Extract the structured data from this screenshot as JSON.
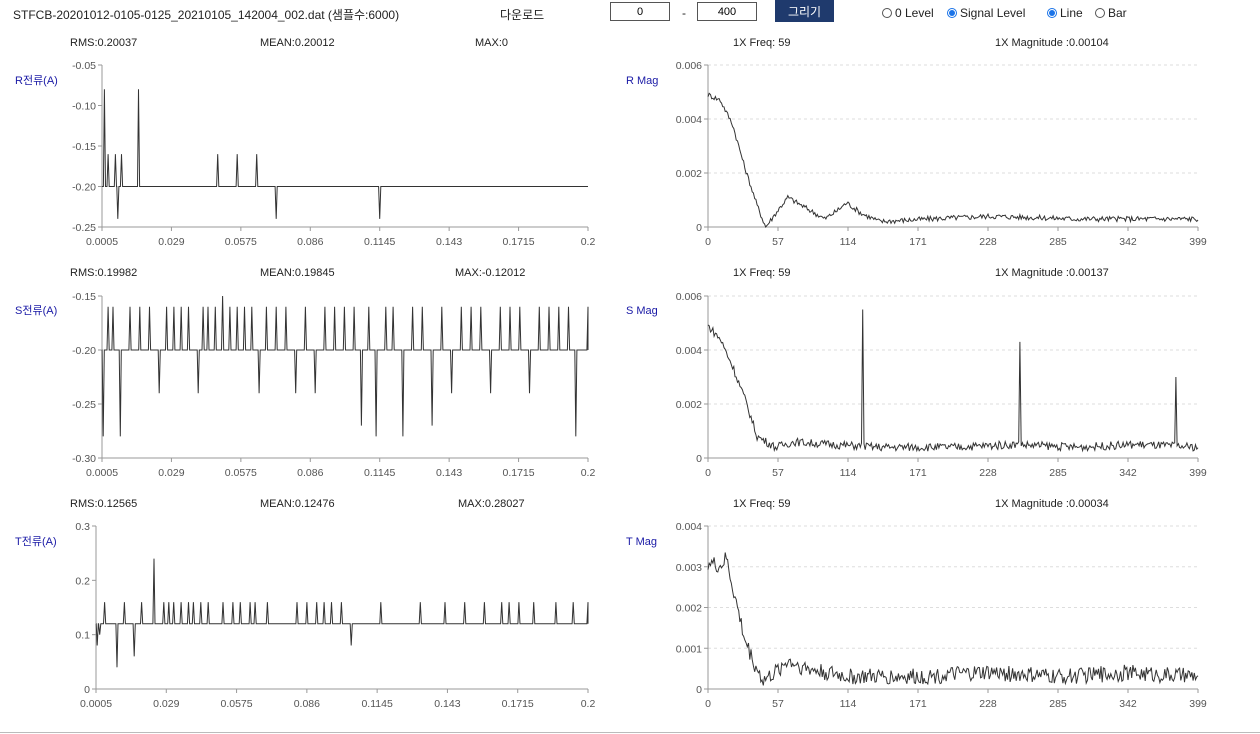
{
  "toolbar": {
    "filename": "STFCB-20201012-0105-0125_20210105_142004_002.dat (샘플수:6000)",
    "download_label": "다운로드",
    "range_start": "0",
    "range_dash": "-",
    "range_end": "400",
    "draw_label": "그리기",
    "level_options": [
      {
        "label": "0 Level",
        "selected": false
      },
      {
        "label": "Signal Level",
        "selected": true
      }
    ],
    "chart_options": [
      {
        "label": "Line",
        "selected": true
      },
      {
        "label": "Bar",
        "selected": false
      }
    ]
  },
  "colors": {
    "line": "#333333",
    "axis_label": "#1a1aa6",
    "button": "#1f3a6d",
    "radio_active": "#1a73e8"
  },
  "panels": [
    {
      "signal": {
        "label": "R전류(A)",
        "stats": [
          "RMS:0.20037",
          "MEAN:0.20012",
          "MAX:0"
        ]
      },
      "spectrum": {
        "label": "R Mag",
        "stats": [
          "1X Freq: 59",
          "1X Magnitude :0.00104"
        ]
      }
    },
    {
      "signal": {
        "label": "S전류(A)",
        "stats": [
          "RMS:0.19982",
          "MEAN:0.19845",
          "MAX:-0.12012"
        ]
      },
      "spectrum": {
        "label": "S Mag",
        "stats": [
          "1X Freq: 59",
          "1X Magnitude :0.00137"
        ]
      }
    },
    {
      "signal": {
        "label": "T전류(A)",
        "stats": [
          "RMS:0.12565",
          "MEAN:0.12476",
          "MAX:0.28027"
        ]
      },
      "spectrum": {
        "label": "T Mag",
        "stats": [
          "1X Freq: 59",
          "1X Magnitude :0.00034"
        ]
      }
    }
  ],
  "chart_data": [
    {
      "type": "line",
      "ylabel": "R전류(A)",
      "ylim": [
        -0.25,
        -0.05
      ],
      "yticks": [
        "-0.05",
        "-0.10",
        "-0.15",
        "-0.20",
        "-0.25"
      ],
      "xticks": [
        "0.0005",
        "0.029",
        "0.0575",
        "0.086",
        "0.1145",
        "0.143",
        "0.1715",
        "0.2"
      ],
      "xlim": [
        0.0005,
        0.2
      ],
      "grid": false,
      "baseline": -0.2,
      "spikes": [
        [
          0.0015,
          -0.08
        ],
        [
          0.003,
          -0.16
        ],
        [
          0.006,
          -0.16
        ],
        [
          0.007,
          -0.24
        ],
        [
          0.0085,
          -0.16
        ],
        [
          0.0155,
          -0.08
        ],
        [
          0.048,
          -0.16
        ],
        [
          0.056,
          -0.16
        ],
        [
          0.064,
          -0.16
        ],
        [
          0.072,
          -0.24
        ],
        [
          0.1145,
          -0.24
        ]
      ]
    },
    {
      "type": "line",
      "ylabel": "R Mag",
      "ylim": [
        0,
        0.006
      ],
      "yticks": [
        "0.006",
        "0.004",
        "0.002",
        "0"
      ],
      "xticks": [
        "0",
        "57",
        "114",
        "171",
        "228",
        "285",
        "342",
        "399"
      ],
      "xlim": [
        0,
        399
      ],
      "grid": true,
      "profile": [
        [
          0,
          0.0049
        ],
        [
          10,
          0.0047
        ],
        [
          20,
          0.0038
        ],
        [
          30,
          0.0022
        ],
        [
          40,
          0.0008
        ],
        [
          47,
          0.0
        ],
        [
          55,
          0.0005
        ],
        [
          65,
          0.0011
        ],
        [
          80,
          0.0007
        ],
        [
          95,
          0.0003
        ],
        [
          105,
          0.0006
        ],
        [
          113,
          0.0009
        ],
        [
          125,
          0.0005
        ],
        [
          140,
          0.0002
        ],
        [
          180,
          0.0003
        ],
        [
          230,
          0.0004
        ],
        [
          300,
          0.0003
        ],
        [
          399,
          0.0003
        ]
      ],
      "noise": 0.0001
    },
    {
      "type": "line",
      "ylabel": "S전류(A)",
      "ylim": [
        -0.3,
        -0.15
      ],
      "yticks": [
        "-0.15",
        "-0.20",
        "-0.25",
        "-0.30"
      ],
      "xticks": [
        "0.0005",
        "0.029",
        "0.0575",
        "0.086",
        "0.1145",
        "0.143",
        "0.1715",
        "0.2"
      ],
      "xlim": [
        0.0005,
        0.2
      ],
      "grid": false,
      "baseline": -0.2,
      "spikes": [
        [
          0.001,
          -0.28
        ],
        [
          0.003,
          -0.16
        ],
        [
          0.005,
          -0.16
        ],
        [
          0.008,
          -0.28
        ],
        [
          0.012,
          -0.16
        ],
        [
          0.016,
          -0.16
        ],
        [
          0.02,
          -0.16
        ],
        [
          0.024,
          -0.24
        ],
        [
          0.027,
          -0.16
        ],
        [
          0.03,
          -0.16
        ],
        [
          0.033,
          -0.16
        ],
        [
          0.036,
          -0.16
        ],
        [
          0.04,
          -0.24
        ],
        [
          0.042,
          -0.16
        ],
        [
          0.044,
          -0.16
        ],
        [
          0.047,
          -0.16
        ],
        [
          0.05,
          -0.15
        ],
        [
          0.053,
          -0.16
        ],
        [
          0.056,
          -0.16
        ],
        [
          0.059,
          -0.16
        ],
        [
          0.062,
          -0.16
        ],
        [
          0.065,
          -0.24
        ],
        [
          0.068,
          -0.16
        ],
        [
          0.072,
          -0.16
        ],
        [
          0.076,
          -0.16
        ],
        [
          0.08,
          -0.24
        ],
        [
          0.084,
          -0.16
        ],
        [
          0.088,
          -0.24
        ],
        [
          0.092,
          -0.16
        ],
        [
          0.096,
          -0.16
        ],
        [
          0.1,
          -0.16
        ],
        [
          0.104,
          -0.16
        ],
        [
          0.107,
          -0.27
        ],
        [
          0.11,
          -0.16
        ],
        [
          0.113,
          -0.28
        ],
        [
          0.117,
          -0.16
        ],
        [
          0.12,
          -0.16
        ],
        [
          0.124,
          -0.28
        ],
        [
          0.128,
          -0.16
        ],
        [
          0.132,
          -0.16
        ],
        [
          0.136,
          -0.27
        ],
        [
          0.14,
          -0.16
        ],
        [
          0.144,
          -0.24
        ],
        [
          0.148,
          -0.16
        ],
        [
          0.152,
          -0.16
        ],
        [
          0.156,
          -0.16
        ],
        [
          0.16,
          -0.24
        ],
        [
          0.164,
          -0.16
        ],
        [
          0.168,
          -0.16
        ],
        [
          0.172,
          -0.16
        ],
        [
          0.176,
          -0.24
        ],
        [
          0.18,
          -0.16
        ],
        [
          0.184,
          -0.16
        ],
        [
          0.188,
          -0.16
        ],
        [
          0.192,
          -0.16
        ],
        [
          0.195,
          -0.28
        ],
        [
          0.2,
          -0.16
        ]
      ]
    },
    {
      "type": "line",
      "ylabel": "S Mag",
      "ylim": [
        0,
        0.006
      ],
      "yticks": [
        "0.006",
        "0.004",
        "0.002",
        "0"
      ],
      "xticks": [
        "0",
        "57",
        "114",
        "171",
        "228",
        "285",
        "342",
        "399"
      ],
      "xlim": [
        0,
        399
      ],
      "grid": true,
      "profile": [
        [
          0,
          0.0049
        ],
        [
          10,
          0.0044
        ],
        [
          20,
          0.0034
        ],
        [
          30,
          0.0022
        ],
        [
          40,
          0.0008
        ],
        [
          55,
          0.0004
        ],
        [
          70,
          0.0006
        ],
        [
          100,
          0.0005
        ],
        [
          140,
          0.0004
        ],
        [
          200,
          0.0004
        ],
        [
          250,
          0.0005
        ],
        [
          300,
          0.0004
        ],
        [
          350,
          0.0005
        ],
        [
          399,
          0.0004
        ]
      ],
      "noise": 0.00015,
      "peaks": [
        [
          126,
          0.0055
        ],
        [
          254,
          0.0043
        ],
        [
          381,
          0.003
        ]
      ]
    },
    {
      "type": "line",
      "ylabel": "T전류(A)",
      "ylim": [
        0,
        0.3
      ],
      "yticks": [
        "0.3",
        "0.2",
        "0.1",
        "0"
      ],
      "xticks": [
        "0.0005",
        "0.029",
        "0.0575",
        "0.086",
        "0.1145",
        "0.143",
        "0.1715",
        "0.2"
      ],
      "xlim": [
        0.0005,
        0.2
      ],
      "grid": false,
      "baseline": 0.12,
      "spikes": [
        [
          0.001,
          0.08
        ],
        [
          0.002,
          0.1
        ],
        [
          0.003,
          0.12
        ],
        [
          0.004,
          0.16
        ],
        [
          0.009,
          0.04
        ],
        [
          0.012,
          0.16
        ],
        [
          0.016,
          0.06
        ],
        [
          0.019,
          0.16
        ],
        [
          0.024,
          0.24
        ],
        [
          0.028,
          0.16
        ],
        [
          0.03,
          0.16
        ],
        [
          0.032,
          0.16
        ],
        [
          0.035,
          0.16
        ],
        [
          0.038,
          0.16
        ],
        [
          0.04,
          0.16
        ],
        [
          0.043,
          0.16
        ],
        [
          0.046,
          0.16
        ],
        [
          0.052,
          0.16
        ],
        [
          0.056,
          0.16
        ],
        [
          0.059,
          0.16
        ],
        [
          0.063,
          0.16
        ],
        [
          0.065,
          0.16
        ],
        [
          0.07,
          0.16
        ],
        [
          0.082,
          0.16
        ],
        [
          0.086,
          0.16
        ],
        [
          0.09,
          0.16
        ],
        [
          0.093,
          0.16
        ],
        [
          0.096,
          0.16
        ],
        [
          0.1,
          0.16
        ],
        [
          0.104,
          0.08
        ],
        [
          0.116,
          0.16
        ],
        [
          0.132,
          0.16
        ],
        [
          0.142,
          0.16
        ],
        [
          0.15,
          0.16
        ],
        [
          0.158,
          0.16
        ],
        [
          0.165,
          0.16
        ],
        [
          0.168,
          0.16
        ],
        [
          0.172,
          0.16
        ],
        [
          0.178,
          0.16
        ],
        [
          0.187,
          0.16
        ],
        [
          0.194,
          0.16
        ],
        [
          0.2,
          0.16
        ]
      ]
    },
    {
      "type": "line",
      "ylabel": "T Mag",
      "ylim": [
        0,
        0.004
      ],
      "yticks": [
        "0.004",
        "0.003",
        "0.002",
        "0.001",
        "0"
      ],
      "xticks": [
        "0",
        "57",
        "114",
        "171",
        "228",
        "285",
        "342",
        "399"
      ],
      "xlim": [
        0,
        399
      ],
      "grid": true,
      "profile": [
        [
          0,
          0.0031
        ],
        [
          10,
          0.003
        ],
        [
          15,
          0.0032
        ],
        [
          20,
          0.0025
        ],
        [
          30,
          0.0012
        ],
        [
          38,
          0.0006
        ],
        [
          45,
          0.0002
        ],
        [
          55,
          0.0004
        ],
        [
          65,
          0.0007
        ],
        [
          80,
          0.0005
        ],
        [
          114,
          0.0003
        ],
        [
          171,
          0.0003
        ],
        [
          228,
          0.0004
        ],
        [
          285,
          0.0003
        ],
        [
          342,
          0.0004
        ],
        [
          399,
          0.0003
        ]
      ],
      "noise": 0.0002
    }
  ]
}
